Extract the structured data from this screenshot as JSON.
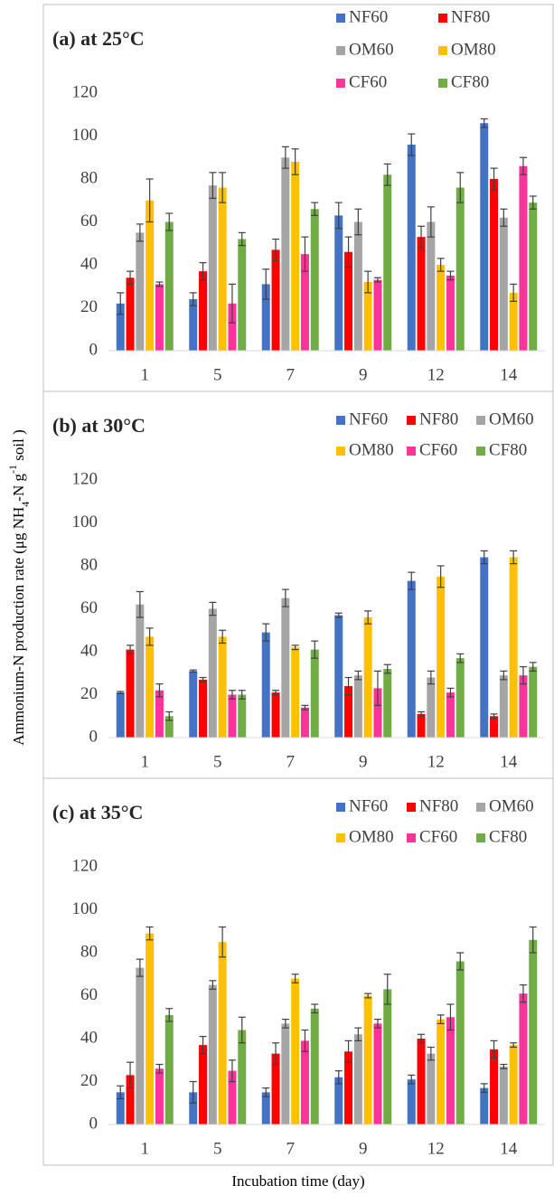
{
  "chart_data": [
    {
      "type": "bar",
      "title": "(a) at 25°C",
      "categories": [
        "1",
        "5",
        "7",
        "9",
        "12",
        "14"
      ],
      "ylim": [
        0,
        120
      ],
      "yticks": [
        0,
        20,
        40,
        60,
        80,
        100,
        120
      ],
      "grid": false,
      "series": [
        {
          "name": "NF60",
          "color": "#4472c4",
          "values": [
            22,
            24,
            31,
            63,
            96,
            106
          ],
          "errors": [
            5,
            3,
            7,
            6,
            5,
            2
          ]
        },
        {
          "name": "NF80",
          "color": "#ff0000",
          "values": [
            34,
            37,
            47,
            46,
            53,
            80
          ],
          "errors": [
            3,
            4,
            5,
            7,
            5,
            5
          ]
        },
        {
          "name": "OM60",
          "color": "#a5a5a5",
          "values": [
            55,
            77,
            90,
            60,
            60,
            62
          ],
          "errors": [
            4,
            6,
            5,
            6,
            7,
            4
          ]
        },
        {
          "name": "OM80",
          "color": "#ffc000",
          "values": [
            70,
            76,
            88,
            32,
            40,
            27
          ],
          "errors": [
            10,
            7,
            6,
            5,
            3,
            4
          ]
        },
        {
          "name": "CF60",
          "color": "#ff3399",
          "values": [
            31,
            22,
            45,
            33,
            35,
            86
          ],
          "errors": [
            1,
            9,
            8,
            1,
            2,
            4
          ]
        },
        {
          "name": "CF80",
          "color": "#70ad47",
          "values": [
            60,
            52,
            66,
            82,
            76,
            69
          ],
          "errors": [
            4,
            3,
            3,
            5,
            7,
            3
          ]
        }
      ]
    },
    {
      "type": "bar",
      "title": "(b) at 30°C",
      "categories": [
        "1",
        "5",
        "7",
        "9",
        "12",
        "14"
      ],
      "ylim": [
        0,
        120
      ],
      "yticks": [
        0,
        20,
        40,
        60,
        80,
        100,
        120
      ],
      "grid": false,
      "series": [
        {
          "name": "NF60",
          "color": "#4472c4",
          "values": [
            21,
            31,
            49,
            57,
            73,
            84
          ],
          "errors": [
            0.5,
            0.5,
            4,
            1,
            4,
            3
          ]
        },
        {
          "name": "NF80",
          "color": "#ff0000",
          "values": [
            41,
            27,
            21,
            24,
            11,
            10
          ],
          "errors": [
            2,
            1,
            1,
            4,
            1,
            1
          ]
        },
        {
          "name": "OM60",
          "color": "#a5a5a5",
          "values": [
            62,
            60,
            65,
            29,
            28,
            29
          ],
          "errors": [
            6,
            3,
            4,
            2,
            3,
            2
          ]
        },
        {
          "name": "OM80",
          "color": "#ffc000",
          "values": [
            47,
            47,
            42,
            56,
            75,
            84
          ],
          "errors": [
            4,
            3,
            1,
            3,
            5,
            3
          ]
        },
        {
          "name": "CF60",
          "color": "#ff3399",
          "values": [
            22,
            20,
            14,
            23,
            21,
            29
          ],
          "errors": [
            3,
            2,
            1,
            8,
            2,
            4
          ]
        },
        {
          "name": "CF80",
          "color": "#70ad47",
          "values": [
            10,
            20,
            41,
            32,
            37,
            33
          ],
          "errors": [
            2,
            2,
            4,
            2,
            2,
            2
          ]
        }
      ]
    },
    {
      "type": "bar",
      "title": "(c) at 35°C",
      "categories": [
        "1",
        "5",
        "7",
        "9",
        "12",
        "14"
      ],
      "ylim": [
        0,
        120
      ],
      "yticks": [
        0,
        20,
        40,
        60,
        80,
        100,
        120
      ],
      "grid": false,
      "series": [
        {
          "name": "NF60",
          "color": "#4472c4",
          "values": [
            15,
            15,
            15,
            22,
            21,
            17
          ],
          "errors": [
            3,
            5,
            2,
            3,
            2,
            2
          ]
        },
        {
          "name": "NF80",
          "color": "#ff0000",
          "values": [
            23,
            37,
            33,
            34,
            40,
            35
          ],
          "errors": [
            6,
            4,
            5,
            5,
            2,
            4
          ]
        },
        {
          "name": "OM60",
          "color": "#a5a5a5",
          "values": [
            73,
            65,
            47,
            42,
            33,
            27
          ],
          "errors": [
            4,
            2,
            2,
            3,
            3,
            1
          ]
        },
        {
          "name": "OM80",
          "color": "#ffc000",
          "values": [
            89,
            85,
            68,
            60,
            49,
            37
          ],
          "errors": [
            3,
            7,
            2,
            1,
            2,
            1
          ]
        },
        {
          "name": "CF60",
          "color": "#ff3399",
          "values": [
            26,
            25,
            39,
            47,
            50,
            61
          ],
          "errors": [
            2,
            5,
            5,
            2,
            6,
            4
          ]
        },
        {
          "name": "CF80",
          "color": "#70ad47",
          "values": [
            51,
            44,
            54,
            63,
            76,
            86
          ],
          "errors": [
            3,
            6,
            2,
            7,
            4,
            6
          ]
        }
      ]
    }
  ],
  "y_label": [
    "Ammonium-N production rate (μg NH",
    "4",
    "-N g",
    "-1",
    " soil )"
  ],
  "x_label": "Incubation time (day)"
}
